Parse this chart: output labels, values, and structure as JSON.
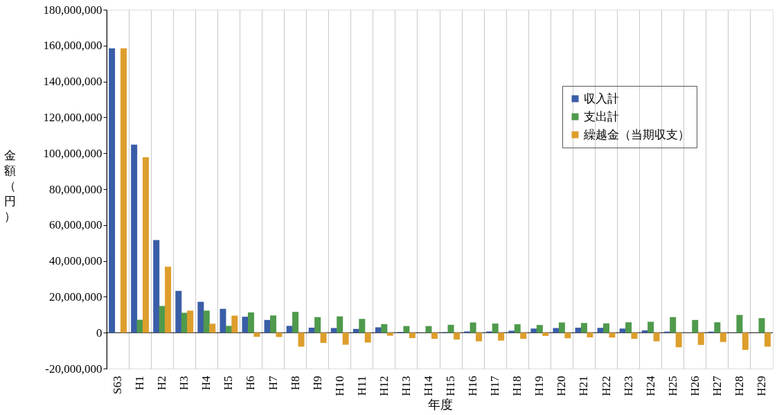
{
  "chart_data": {
    "type": "bar",
    "categories": [
      "S63",
      "H1",
      "H2",
      "H3",
      "H4",
      "H5",
      "H6",
      "H7",
      "H8",
      "H9",
      "H10",
      "H11",
      "H12",
      "H13",
      "H14",
      "H15",
      "H16",
      "H17",
      "H18",
      "H19",
      "H20",
      "H21",
      "H22",
      "H23",
      "H24",
      "H25",
      "H26",
      "H27",
      "H28",
      "H29"
    ],
    "series": [
      {
        "name": "収入計",
        "color": "#3a5da8",
        "values": [
          158500000,
          104800000,
          51600000,
          23300000,
          17200000,
          13300000,
          8900000,
          7100000,
          3800000,
          2800000,
          2600000,
          2100000,
          3000000,
          400000,
          0,
          300000,
          700000,
          700000,
          1100000,
          2300000,
          2600000,
          2800000,
          2700000,
          2300000,
          1300000,
          600000,
          0,
          600000,
          0,
          0
        ]
      },
      {
        "name": "支出計",
        "color": "#4f9a4c",
        "values": [
          0,
          7200000,
          14900000,
          11100000,
          12300000,
          3800000,
          11300000,
          9600000,
          11600000,
          8700000,
          9100000,
          7700000,
          4800000,
          3700000,
          3700000,
          4400000,
          5700000,
          5100000,
          4700000,
          4300000,
          5700000,
          5400000,
          5200000,
          5800000,
          6100000,
          8700000,
          7100000,
          5800000,
          9900000,
          8100000
        ]
      },
      {
        "name": "繰越金（当期収支）",
        "color": "#dd9e2c",
        "values": [
          158500000,
          97800000,
          36800000,
          12300000,
          5000000,
          9500000,
          -2300000,
          -2400000,
          -7800000,
          -5700000,
          -6700000,
          -5500000,
          -1700000,
          -3000000,
          -3400000,
          -3800000,
          -4800000,
          -4400000,
          -3400000,
          -1800000,
          -3100000,
          -2600000,
          -2700000,
          -3400000,
          -4800000,
          -8100000,
          -6800000,
          -5200000,
          -9600000,
          -7800000
        ]
      }
    ],
    "ylabel": "金額（円）",
    "xlabel": "年度",
    "ylim": [
      -20000000,
      180000000
    ],
    "yticks": [
      {
        "value": -20000000,
        "label": "-20,000,000"
      },
      0,
      {
        "value": 20000000,
        "label": "20,000,000"
      },
      {
        "value": 40000000,
        "label": "40,000,000"
      },
      {
        "value": 60000000,
        "label": "60,000,000"
      },
      {
        "value": 80000000,
        "label": "80,000,000"
      },
      {
        "value": 100000000,
        "label": "100,000,000"
      },
      {
        "value": 120000000,
        "label": "120,000,000"
      },
      {
        "value": 140000000,
        "label": "140,000,000"
      },
      {
        "value": 160000000,
        "label": "160,000,000"
      },
      {
        "value": 180000000,
        "label": "180,000,000"
      }
    ],
    "grid": "x",
    "legend": "top right"
  }
}
